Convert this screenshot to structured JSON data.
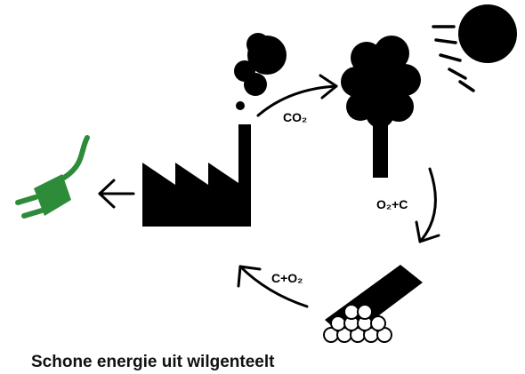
{
  "labels": [
    "CO₂",
    "O₂+C",
    "C+O₂"
  ],
  "caption": "Schone energie uit wilgenteelt"
}
